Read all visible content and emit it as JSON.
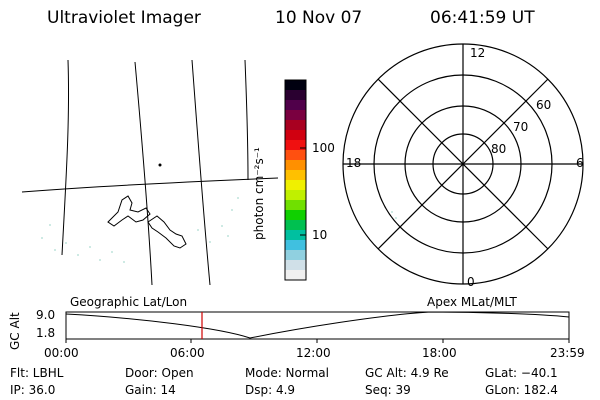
{
  "header": {
    "instrument": "Ultraviolet Imager",
    "date": "10 Nov 07",
    "time": "06:41:59 UT"
  },
  "colorbar": {
    "unit_label": "photon cm⁻²s⁻¹",
    "tick_100": "100",
    "tick_10": "10",
    "colors": [
      "#000010",
      "#2a0030",
      "#50004a",
      "#7a0040",
      "#a80020",
      "#d00010",
      "#f01010",
      "#ff5010",
      "#ff9000",
      "#ffc000",
      "#f0f000",
      "#c0f000",
      "#70e000",
      "#10d000",
      "#00c050",
      "#00c0a0",
      "#40c0e0",
      "#90d0e0",
      "#d0e0e8",
      "#f0f0f0"
    ]
  },
  "polar": {
    "label_12": "12",
    "label_6": "6",
    "label_18": "18",
    "label_0": "0",
    "label_60": "60",
    "label_70": "70",
    "label_80": "80"
  },
  "timeline": {
    "ylabel": "GC Alt",
    "left_caption": "Geographic Lat/Lon",
    "right_caption": "Apex MLat/MLT",
    "ymax_label": "9.0",
    "ymin_label": "1.8",
    "x_ticks": [
      "00:00",
      "06:00",
      "12:00",
      "18:00",
      "23:59"
    ],
    "marker_color": "#d00000"
  },
  "info": {
    "flt": "Flt: LBHL",
    "ip": "IP: 36.0",
    "door": "Door: Open",
    "gain": "Gain: 14",
    "mode": "Mode: Normal",
    "dsp": "Dsp:     4.9",
    "gc_alt": "GC Alt: 4.9 Re",
    "seq": "Seq: 39",
    "glat": "GLat: −40.1",
    "glon": "GLon: 182.4"
  }
}
